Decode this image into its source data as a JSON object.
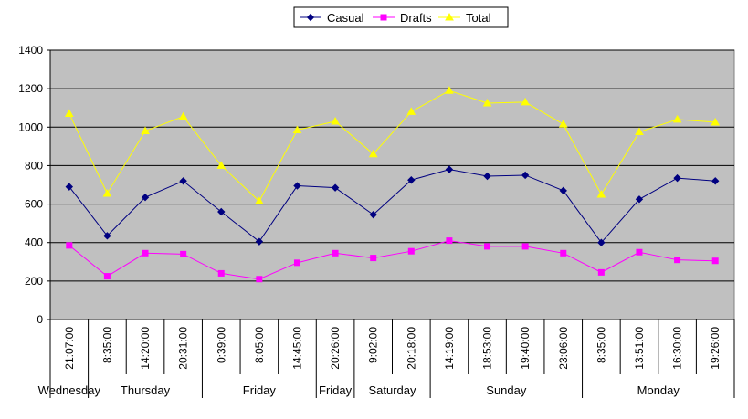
{
  "chart_data": {
    "type": "line",
    "title": "",
    "xlabel": "",
    "ylabel": "",
    "ylim": [
      0,
      1400
    ],
    "yticks": [
      0,
      200,
      400,
      600,
      800,
      1000,
      1200,
      1400
    ],
    "grid": true,
    "legend_position": "top",
    "plot_background": "#C0C0C0",
    "categories": [
      "21:07:00",
      "8:35:00",
      "14:20:00",
      "20:31:00",
      "0:39:00",
      "8:05:00",
      "14:45:00",
      "20:26:00",
      "9:02:00",
      "20:18:00",
      "14:19:00",
      "18:53:00",
      "19:40:00",
      "23:06:00",
      "8:35:00",
      "13:51:00",
      "16:30:00",
      "19:26:00"
    ],
    "day_groups": [
      {
        "label": "Wednesday",
        "start": 0,
        "end": 1
      },
      {
        "label": "Thursday",
        "start": 1,
        "end": 4
      },
      {
        "label": "Friday",
        "start": 4,
        "end": 7
      },
      {
        "label": "Friday",
        "start": 7,
        "end": 8
      },
      {
        "label": "Saturday",
        "start": 8,
        "end": 10
      },
      {
        "label": "Sunday",
        "start": 10,
        "end": 14
      },
      {
        "label": "Monday",
        "start": 14,
        "end": 18
      }
    ],
    "series": [
      {
        "name": "Casual",
        "color": "#000080",
        "marker": "diamond",
        "values": [
          690,
          435,
          635,
          720,
          560,
          405,
          695,
          685,
          545,
          725,
          780,
          745,
          750,
          670,
          400,
          625,
          735,
          720
        ]
      },
      {
        "name": "Drafts",
        "color": "#FF00FF",
        "marker": "square",
        "values": [
          385,
          225,
          345,
          340,
          240,
          210,
          295,
          345,
          320,
          355,
          410,
          380,
          380,
          345,
          245,
          350,
          310,
          305
        ]
      },
      {
        "name": "Total",
        "color": "#FFFF00",
        "marker": "triangle",
        "values": [
          1070,
          655,
          980,
          1055,
          800,
          615,
          985,
          1030,
          860,
          1080,
          1190,
          1125,
          1130,
          1015,
          650,
          975,
          1040,
          1025
        ]
      }
    ]
  }
}
